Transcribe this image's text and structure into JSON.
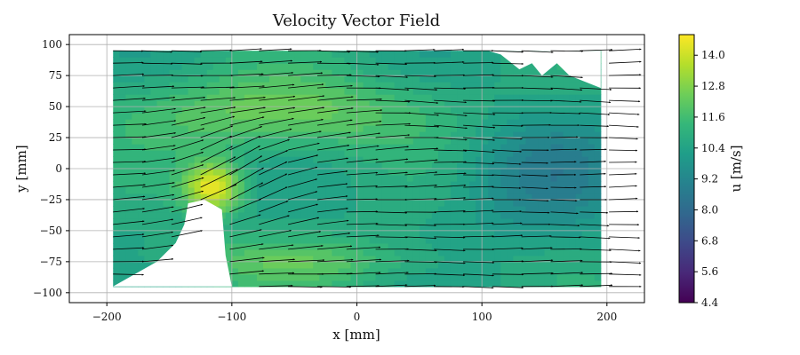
{
  "chart_data": {
    "type": "heatmap",
    "subtype": "filled contour map with vector field overlay",
    "title": "Velocity Vector Field",
    "xlabel": "x [mm]",
    "ylabel": "y [mm]",
    "xlim": [
      -230,
      230
    ],
    "ylim": [
      -108,
      108
    ],
    "xticks": [
      -200,
      -100,
      0,
      100,
      200
    ],
    "yticks": [
      -100,
      -75,
      -50,
      -25,
      0,
      25,
      50,
      75,
      100
    ],
    "grid": true,
    "colormap": "viridis",
    "colorbar": {
      "label": "u [m/s]",
      "range": [
        4.4,
        14.8
      ],
      "ticks": [
        4.4,
        5.6,
        6.8,
        8.0,
        9.2,
        10.4,
        11.6,
        12.8,
        14.0
      ]
    },
    "field": {
      "x_range": [
        -195,
        195
      ],
      "y_range": [
        -95,
        95
      ],
      "base_u": 10.6,
      "features": [
        {
          "name": "high-speed band",
          "x": -60,
          "y": 45,
          "u": 12.4
        },
        {
          "name": "peak",
          "x": -115,
          "y": -15,
          "u": 14.6
        },
        {
          "name": "low-speed region",
          "x": 150,
          "y": -5,
          "u": 9.0
        },
        {
          "name": "high-speed lower band",
          "x": -50,
          "y": -75,
          "u": 11.9
        }
      ],
      "masked_regions": [
        {
          "name": "obstacle",
          "polygon": [
            [
              -135,
              -28
            ],
            [
              -122,
              -25
            ],
            [
              -108,
              -33
            ],
            [
              -105,
              -70
            ],
            [
              -100,
              -95
            ],
            [
              -195,
              -95
            ],
            [
              -160,
              -75
            ],
            [
              -145,
              -60
            ],
            [
              -138,
              -45
            ]
          ]
        },
        {
          "name": "cutout",
          "polygon": [
            [
              105,
              95
            ],
            [
              195,
              95
            ],
            [
              195,
              65
            ],
            [
              170,
              75
            ],
            [
              160,
              85
            ],
            [
              148,
              75
            ],
            [
              140,
              85
            ],
            [
              130,
              80
            ],
            [
              115,
              92
            ]
          ]
        }
      ]
    },
    "vectors": {
      "grid_spacing_y_mm": 10,
      "arrow_length_mm": 25,
      "color": "#000000"
    }
  }
}
